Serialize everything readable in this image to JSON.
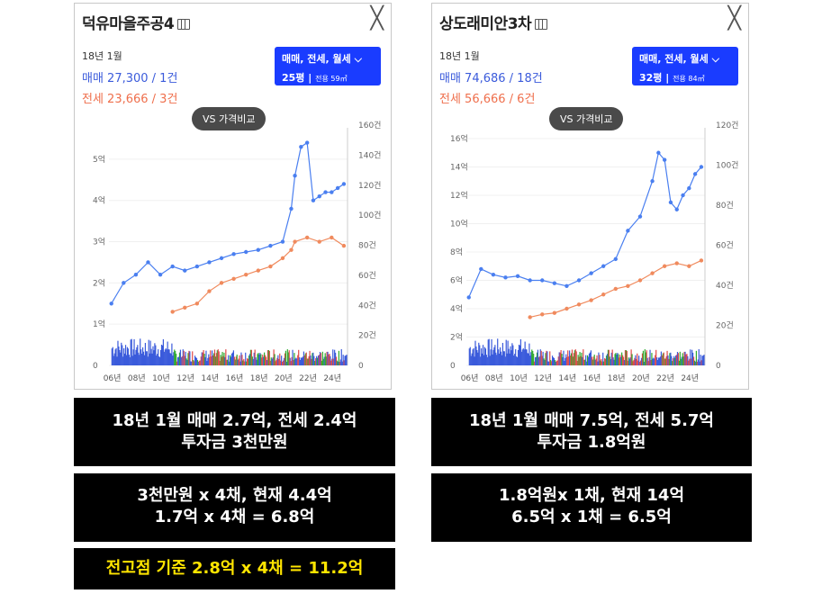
{
  "cards": [
    {
      "title": "덕유마을주공4",
      "close": "╳",
      "ym": "18년 1월",
      "sale": "매매 27,300 / 1건",
      "jeonse": "전세 23,666 / 3건",
      "filter_types": "매매, 전세, 월세 ⌵",
      "filter_size": "25평",
      "filter_area": "전용 59㎡",
      "vs_button": "VS 가격비교"
    },
    {
      "title": "상도래미안3차",
      "close": "╳",
      "ym": "18년 1월",
      "sale": "매매 74,686 / 18건",
      "jeonse": "전세 56,666 / 6건",
      "filter_types": "매매, 전세, 월세 ⌵",
      "filter_size": "32평",
      "filter_area": "전용 84㎡",
      "vs_button": "VS 가격비교"
    }
  ],
  "boxes": {
    "left1": [
      "18년 1월 매매 2.7억, 전세 2.4억",
      "투자금 3천만원"
    ],
    "left2": [
      "3천만원 x 4채, 현재 4.4억",
      "1.7억 x 4채 = 6.8억"
    ],
    "left3": [
      "전고점 기준 2.8억 x 4채 = 11.2억"
    ],
    "right1": [
      "18년 1월 매매 7.5억, 전세 5.7억",
      "투자금 1.8억원"
    ],
    "right2": [
      "1.8억원x 1채, 현재 14억",
      "6.5억 x 1채 = 6.5억"
    ]
  },
  "chart_data": [
    {
      "type": "line",
      "x_ticks": [
        "06년",
        "08년",
        "10년",
        "12년",
        "14년",
        "16년",
        "18년",
        "20년",
        "22년",
        "24년"
      ],
      "y_ticks": [
        "0",
        "1억",
        "2억",
        "3억",
        "4억",
        "5억"
      ],
      "y2_ticks": [
        "0",
        "20건",
        "40건",
        "60건",
        "80건",
        "100건",
        "120건",
        "140건",
        "160건"
      ],
      "ylim": [
        0,
        5.5
      ],
      "y2lim": [
        0,
        160
      ],
      "series": [
        {
          "color": "#4a7ff0",
          "x": [
            2006,
            2007,
            2008,
            2009,
            2010,
            2011,
            2012,
            2013,
            2014,
            2015,
            2016,
            2017,
            2018,
            2019,
            2020,
            2020.7,
            2021,
            2021.5,
            2022,
            2022.5,
            2023,
            2023.5,
            2024,
            2024.5,
            2025
          ],
          "y": [
            1.5,
            2.0,
            2.2,
            2.5,
            2.2,
            2.4,
            2.3,
            2.4,
            2.5,
            2.6,
            2.7,
            2.75,
            2.8,
            2.9,
            3.0,
            3.8,
            4.6,
            5.3,
            5.4,
            4.0,
            4.1,
            4.2,
            4.2,
            4.3,
            4.4
          ]
        },
        {
          "color": "#f08a5d",
          "x": [
            2011,
            2012,
            2013,
            2014,
            2015,
            2016,
            2017,
            2018,
            2019,
            2020,
            2020.7,
            2021,
            2022,
            2023,
            2024,
            2025
          ],
          "y": [
            1.3,
            1.4,
            1.5,
            1.8,
            2.0,
            2.1,
            2.2,
            2.3,
            2.4,
            2.6,
            2.8,
            3.0,
            3.1,
            3.0,
            3.1,
            2.9
          ]
        }
      ],
      "volume": {
        "colors": [
          "#3b5bdb",
          "#e04a4a",
          "#2eaa2e"
        ]
      }
    },
    {
      "type": "line",
      "x_ticks": [
        "06년",
        "08년",
        "10년",
        "12년",
        "14년",
        "16년",
        "18년",
        "20년",
        "22년",
        "24년"
      ],
      "y_ticks": [
        "0",
        "2억",
        "4억",
        "6억",
        "8억",
        "10억",
        "12억",
        "14억",
        "16억"
      ],
      "y2_ticks": [
        "0",
        "20건",
        "40건",
        "60건",
        "80건",
        "100건",
        "120건"
      ],
      "ylim": [
        0,
        16
      ],
      "y2lim": [
        0,
        120
      ],
      "series": [
        {
          "color": "#4a7ff0",
          "x": [
            2006,
            2007,
            2008,
            2009,
            2010,
            2011,
            2012,
            2013,
            2014,
            2015,
            2016,
            2017,
            2018,
            2019,
            2020,
            2021,
            2021.5,
            2022,
            2022.5,
            2023,
            2023.5,
            2024,
            2024.5,
            2025
          ],
          "y": [
            4.8,
            6.8,
            6.4,
            6.2,
            6.3,
            6.0,
            6.0,
            5.8,
            5.6,
            6.0,
            6.5,
            7.0,
            7.5,
            9.5,
            10.5,
            13.0,
            15.0,
            14.5,
            11.5,
            11.0,
            12.0,
            12.5,
            13.5,
            14.0
          ]
        },
        {
          "color": "#f08a5d",
          "x": [
            2011,
            2012,
            2013,
            2014,
            2015,
            2016,
            2017,
            2018,
            2019,
            2020,
            2021,
            2022,
            2023,
            2024,
            2025
          ],
          "y": [
            3.4,
            3.6,
            3.7,
            4.0,
            4.3,
            4.6,
            5.0,
            5.4,
            5.6,
            6.0,
            6.5,
            7.0,
            7.2,
            7.0,
            7.4
          ]
        }
      ],
      "volume": {
        "colors": [
          "#3b5bdb",
          "#e04a4a",
          "#2eaa2e"
        ]
      }
    }
  ]
}
